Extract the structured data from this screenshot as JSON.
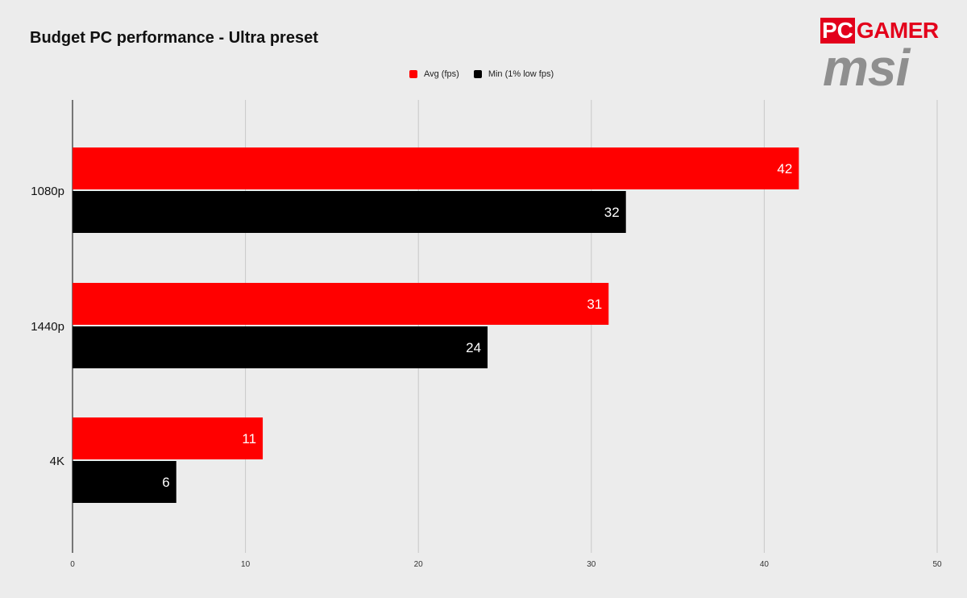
{
  "chart_data": {
    "type": "bar",
    "orientation": "horizontal",
    "title": "Budget PC performance - Ultra preset",
    "xlabel": "",
    "ylabel": "",
    "categories": [
      "1080p",
      "1440p",
      "4K"
    ],
    "series": [
      {
        "name": "Avg (fps)",
        "color": "#ff0000",
        "values": [
          42,
          31,
          11
        ]
      },
      {
        "name": "Min (1% low fps)",
        "color": "#000000",
        "values": [
          32,
          24,
          6
        ]
      }
    ],
    "xlim": [
      0,
      50
    ],
    "xticks": [
      0,
      10,
      20,
      30,
      40,
      50
    ],
    "grid": true,
    "legend_position": "top-center",
    "data_labels": true
  },
  "branding": {
    "pc_text": "PC",
    "gamer_text": "GAMER",
    "msi_text": "msi",
    "pc_color": "#e3001b",
    "msi_color": "#8f8f8f"
  }
}
